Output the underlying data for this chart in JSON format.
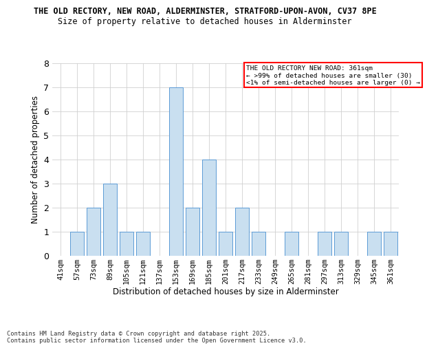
{
  "title_line1": "THE OLD RECTORY, NEW ROAD, ALDERMINSTER, STRATFORD-UPON-AVON, CV37 8PE",
  "title_line2": "Size of property relative to detached houses in Alderminster",
  "xlabel": "Distribution of detached houses by size in Alderminster",
  "ylabel": "Number of detached properties",
  "categories": [
    "41sqm",
    "57sqm",
    "73sqm",
    "89sqm",
    "105sqm",
    "121sqm",
    "137sqm",
    "153sqm",
    "169sqm",
    "185sqm",
    "201sqm",
    "217sqm",
    "233sqm",
    "249sqm",
    "265sqm",
    "281sqm",
    "297sqm",
    "313sqm",
    "329sqm",
    "345sqm",
    "361sqm"
  ],
  "values": [
    0,
    1,
    2,
    3,
    1,
    1,
    0,
    7,
    2,
    4,
    1,
    2,
    1,
    0,
    1,
    0,
    1,
    1,
    0,
    1,
    1
  ],
  "bar_color": "#c9dff0",
  "bar_edge_color": "#5b9bd5",
  "ylim": [
    0,
    8
  ],
  "yticks": [
    0,
    1,
    2,
    3,
    4,
    5,
    6,
    7,
    8
  ],
  "legend_title": "THE OLD RECTORY NEW ROAD: 361sqm",
  "legend_line2": "← >99% of detached houses are smaller (30)",
  "legend_line3": "<1% of semi-detached houses are larger (0) →",
  "legend_box_color": "#ff0000",
  "footer_line1": "Contains HM Land Registry data © Crown copyright and database right 2025.",
  "footer_line2": "Contains public sector information licensed under the Open Government Licence v3.0.",
  "highlight_bar_index": 20,
  "background_color": "#ffffff",
  "grid_color": "#d0d0d0"
}
